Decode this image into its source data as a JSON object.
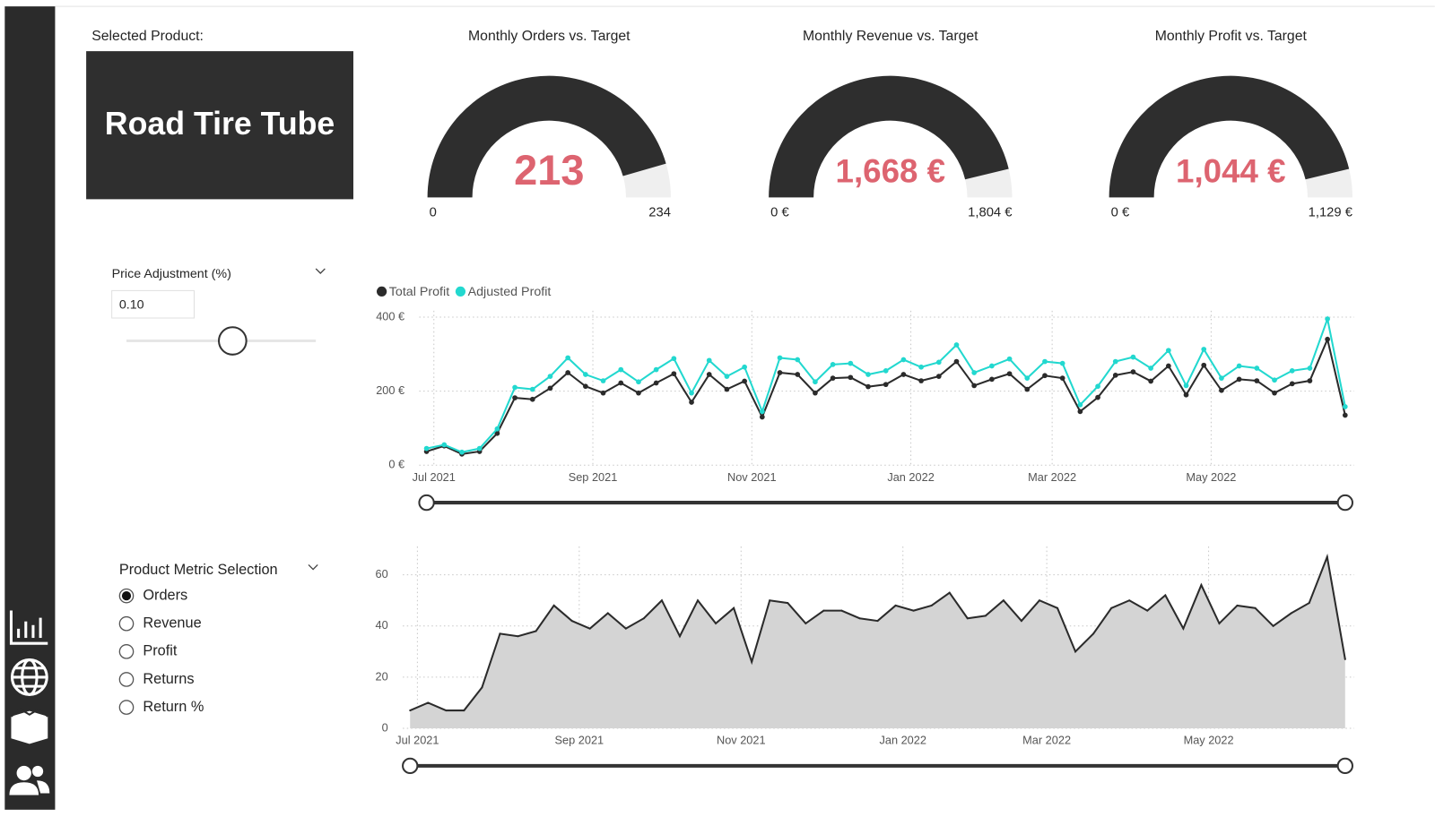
{
  "selected_product": {
    "label": "Selected Product:",
    "value": "Road Tire Tube"
  },
  "price_adjustment": {
    "label": "Price Adjustment (%)",
    "value": "0.10"
  },
  "metric_selection": {
    "label": "Product Metric Selection",
    "options": [
      "Orders",
      "Revenue",
      "Profit",
      "Returns",
      "Return %"
    ],
    "selected": 0
  },
  "chart_data": [
    {
      "type": "gauge",
      "title": "Monthly Orders vs. Target",
      "values": [
        213
      ],
      "ylim": [
        0,
        234
      ],
      "yticks": [
        0,
        234
      ],
      "color": "#2e2e2e",
      "track_color": "#efefef",
      "value_color": "#dd6470"
    },
    {
      "type": "gauge",
      "title": "Monthly Revenue vs. Target",
      "values": [
        1668
      ],
      "value_labels": [
        "1,668 €"
      ],
      "ylim": [
        0,
        1804
      ],
      "yticks": [
        {
          "value": 0,
          "label": "0 €"
        },
        {
          "value": 1804,
          "label": "1,804 €"
        }
      ],
      "color": "#2e2e2e",
      "track_color": "#efefef",
      "value_color": "#dd6470"
    },
    {
      "type": "gauge",
      "title": "Monthly Profit vs. Target",
      "values": [
        1044
      ],
      "value_labels": [
        "1,044 €"
      ],
      "ylim": [
        0,
        1129
      ],
      "yticks": [
        {
          "value": 0,
          "label": "0 €"
        },
        {
          "value": 1129,
          "label": "1,129 €"
        }
      ],
      "color": "#2e2e2e",
      "track_color": "#efefef",
      "value_color": "#dd6470"
    },
    {
      "type": "line",
      "categories": [
        "Jul 2021",
        null,
        null,
        null,
        null,
        null,
        null,
        null,
        null,
        "Sep 2021",
        null,
        null,
        null,
        null,
        null,
        null,
        null,
        null,
        "Nov 2021",
        null,
        null,
        null,
        null,
        null,
        null,
        null,
        null,
        "Jan 2022",
        null,
        null,
        null,
        null,
        null,
        null,
        null,
        "Mar 2022",
        null,
        null,
        null,
        null,
        null,
        null,
        null,
        null,
        "May 2022",
        null,
        null,
        null,
        null,
        null,
        null,
        null,
        null
      ],
      "series": [
        {
          "name": "Total Profit",
          "color": "#2b2b2b",
          "values": [
            37,
            52,
            30,
            37,
            86,
            182,
            178,
            208,
            250,
            213,
            195,
            222,
            195,
            222,
            247,
            170,
            245,
            205,
            227,
            130,
            250,
            245,
            195,
            235,
            237,
            212,
            218,
            245,
            228,
            240,
            280,
            215,
            232,
            247,
            205,
            242,
            235,
            145,
            183,
            243,
            252,
            227,
            268,
            190,
            270,
            202,
            232,
            228,
            195,
            220,
            228,
            340,
            135
          ]
        },
        {
          "name": "Adjusted Profit",
          "color": "#22d8cf",
          "values": [
            45,
            55,
            35,
            45,
            98,
            210,
            205,
            240,
            290,
            245,
            228,
            258,
            225,
            258,
            288,
            195,
            283,
            240,
            265,
            145,
            290,
            285,
            225,
            272,
            275,
            245,
            255,
            285,
            265,
            278,
            325,
            250,
            268,
            287,
            235,
            280,
            275,
            163,
            213,
            280,
            292,
            262,
            310,
            215,
            313,
            235,
            268,
            262,
            230,
            255,
            262,
            395,
            158
          ]
        }
      ],
      "ylim": [
        0,
        400
      ],
      "yticks": [
        {
          "value": 0,
          "label": "0 €"
        },
        {
          "value": 200,
          "label": "200 €"
        },
        {
          "value": 400,
          "label": "400 €"
        }
      ],
      "grid": true,
      "legend": "top-left"
    },
    {
      "type": "area",
      "categories": [
        "Jul 2021",
        null,
        null,
        null,
        null,
        null,
        null,
        null,
        null,
        "Sep 2021",
        null,
        null,
        null,
        null,
        null,
        null,
        null,
        null,
        "Nov 2021",
        null,
        null,
        null,
        null,
        null,
        null,
        null,
        null,
        "Jan 2022",
        null,
        null,
        null,
        null,
        null,
        null,
        null,
        "Mar 2022",
        null,
        null,
        null,
        null,
        null,
        null,
        null,
        null,
        "May 2022",
        null,
        null,
        null,
        null,
        null,
        null,
        null,
        null
      ],
      "values": [
        7,
        10,
        7,
        7,
        16,
        37,
        36,
        38,
        48,
        42,
        39,
        45,
        39,
        43,
        50,
        36,
        50,
        41,
        47,
        26,
        50,
        49,
        41,
        46,
        46,
        43,
        42,
        48,
        46,
        48,
        53,
        43,
        44,
        50,
        42,
        50,
        47,
        30,
        37,
        47,
        50,
        46,
        52,
        39,
        56,
        41,
        48,
        47,
        40,
        45,
        49,
        67,
        27
      ],
      "color": "#d4d4d4",
      "line_color": "#2b2b2b",
      "ylim": [
        0,
        70
      ],
      "yticks": [
        0,
        20,
        40,
        60
      ],
      "grid": true
    }
  ]
}
